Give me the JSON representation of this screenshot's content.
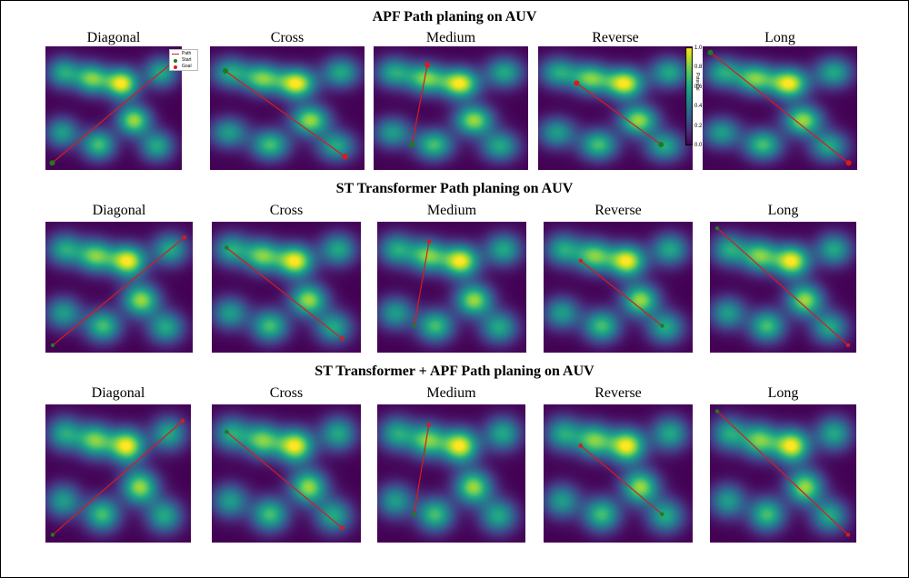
{
  "figure": {
    "row_titles": [
      "APF Path planing on AUV",
      "ST Transformer Path planing on AUV",
      "ST Transformer + APF Path planing on AUV"
    ],
    "panel_titles": [
      "Diagonal",
      "Cross",
      "Medium",
      "Reverse",
      "Long"
    ],
    "legend": {
      "path": "Path",
      "start": "Start",
      "goal": "Goal"
    },
    "colorbar": {
      "ticks": [
        "0.0",
        "0.2",
        "0.4",
        "0.6",
        "0.8",
        "1.0"
      ],
      "label": "Potential"
    },
    "colors": {
      "path": "#d81b1b",
      "start": "#1f7a1f",
      "goal": "#e01818",
      "background": "#440154"
    }
  },
  "chart_data": {
    "type": "heatmap",
    "title": "",
    "field_peaks": [
      {
        "x": 0.13,
        "y": 0.79,
        "amp": 0.6
      },
      {
        "x": 0.34,
        "y": 0.74,
        "amp": 0.78
      },
      {
        "x": 0.56,
        "y": 0.7,
        "amp": 1.0
      },
      {
        "x": 0.85,
        "y": 0.79,
        "amp": 0.6
      },
      {
        "x": 0.65,
        "y": 0.4,
        "amp": 0.85
      },
      {
        "x": 0.12,
        "y": 0.3,
        "amp": 0.55
      },
      {
        "x": 0.39,
        "y": 0.2,
        "amp": 0.7
      },
      {
        "x": 0.82,
        "y": 0.19,
        "amp": 0.6
      }
    ],
    "field_sigma": 0.085,
    "xlim": [
      0,
      1
    ],
    "ylim": [
      0,
      1
    ],
    "panels": [
      {
        "row": 0,
        "name": "Diagonal",
        "start": [
          0.05,
          0.05
        ],
        "goal": [
          0.95,
          0.88
        ]
      },
      {
        "row": 0,
        "name": "Cross",
        "start": [
          0.1,
          0.8
        ],
        "goal": [
          0.88,
          0.1
        ]
      },
      {
        "row": 0,
        "name": "Medium",
        "start": [
          0.25,
          0.2
        ],
        "goal": [
          0.35,
          0.85
        ]
      },
      {
        "row": 0,
        "name": "Reverse",
        "start": [
          0.8,
          0.2
        ],
        "goal": [
          0.25,
          0.7
        ]
      },
      {
        "row": 0,
        "name": "Long",
        "start": [
          0.05,
          0.95
        ],
        "goal": [
          0.95,
          0.05
        ]
      },
      {
        "row": 1,
        "name": "Diagonal",
        "start": [
          0.05,
          0.05
        ],
        "goal": [
          0.95,
          0.88
        ]
      },
      {
        "row": 1,
        "name": "Cross",
        "start": [
          0.1,
          0.8
        ],
        "goal": [
          0.88,
          0.1
        ]
      },
      {
        "row": 1,
        "name": "Medium",
        "start": [
          0.25,
          0.2
        ],
        "goal": [
          0.35,
          0.85
        ]
      },
      {
        "row": 1,
        "name": "Reverse",
        "start": [
          0.8,
          0.2
        ],
        "goal": [
          0.25,
          0.7
        ]
      },
      {
        "row": 1,
        "name": "Long",
        "start": [
          0.05,
          0.95
        ],
        "goal": [
          0.95,
          0.05
        ]
      },
      {
        "row": 2,
        "name": "Diagonal",
        "start": [
          0.05,
          0.05
        ],
        "goal": [
          0.95,
          0.88
        ]
      },
      {
        "row": 2,
        "name": "Cross",
        "start": [
          0.1,
          0.8
        ],
        "goal": [
          0.88,
          0.1
        ]
      },
      {
        "row": 2,
        "name": "Medium",
        "start": [
          0.25,
          0.2
        ],
        "goal": [
          0.35,
          0.85
        ]
      },
      {
        "row": 2,
        "name": "Reverse",
        "start": [
          0.8,
          0.2
        ],
        "goal": [
          0.25,
          0.7
        ]
      },
      {
        "row": 2,
        "name": "Long",
        "start": [
          0.05,
          0.95
        ],
        "goal": [
          0.95,
          0.05
        ]
      }
    ]
  }
}
